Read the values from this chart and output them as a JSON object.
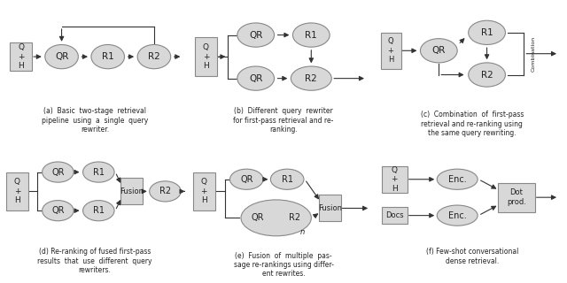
{
  "bg_color": "#ffffff",
  "node_color": "#d8d8d8",
  "node_edge_color": "#888888",
  "arrow_color": "#333333",
  "text_color": "#222222",
  "captions": [
    "(a)  Basic  two-stage  retrieval\npipeline  using  a  single  query\nrewriter.",
    "(b)  Different  query  rewriter\nfor first-pass retrieval and re-\nranking.",
    "(c)  Combination  of  first-pass\nretrieval and re-ranking using\nthe same query rewriting.",
    "(d) Re-ranking of fused first-pass\nresults  that  use  different  query\nrewriters.",
    "(e)  Fusion  of  multiple  pas-\nsage re-rankings using differ-\nent rewrites.",
    "(f) Few-shot conversational\ndense retrieval."
  ]
}
